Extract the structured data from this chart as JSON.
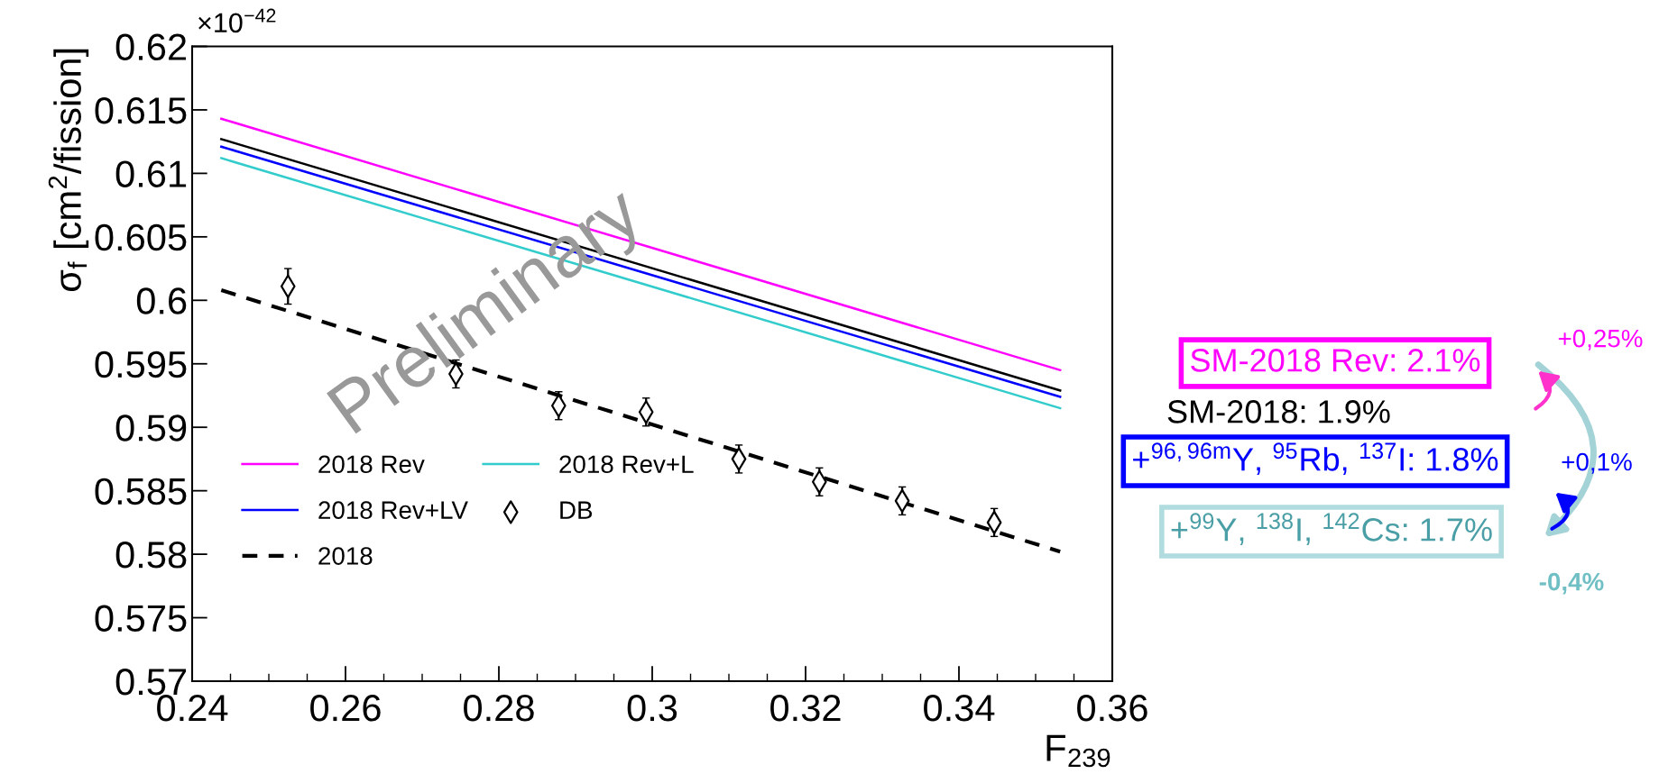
{
  "chart_data": {
    "type": "line",
    "xlabel": "F$_{239}$",
    "ylabel": "σ$_{f}$ [cm$^{2}$/fission]",
    "xlim": [
      0.24,
      0.36
    ],
    "xticks": [
      0.24,
      0.26,
      0.28,
      0.3,
      0.32,
      0.34,
      0.36
    ],
    "ylim": [
      0.57,
      0.62
    ],
    "yticks": [
      0.57,
      0.575,
      0.58,
      0.585,
      0.59,
      0.595,
      0.6,
      0.605,
      0.61,
      0.615,
      0.62
    ],
    "grid": false,
    "legend": "bottom left",
    "series": [
      {
        "name": "2018 Rev",
        "color": "#ff00ff",
        "x": [
          0.2438,
          0.3532
        ],
        "values": [
          0.6143,
          0.5945
        ]
      },
      {
        "name": "2018 Rev+LV",
        "color": "#0000ff",
        "x": [
          0.2438,
          0.3532
        ],
        "values": [
          0.6121,
          0.5924
        ]
      },
      {
        "name": "2018",
        "color": "#000000",
        "line_style": "dashed",
        "x": [
          0.2438,
          0.3532
        ],
        "values": [
          0.6008,
          0.5802
        ]
      },
      {
        "name": "2018 Rev+L",
        "color": "#33cccc",
        "x": [
          0.2438,
          0.3532
        ],
        "values": [
          0.6112,
          0.5915
        ]
      },
      {
        "name": "DB",
        "type": "scatter",
        "color": "#000000",
        "marker": "diamond",
        "x": [
          0.2525,
          0.2744,
          0.2878,
          0.2992,
          0.3113,
          0.3218,
          0.3326,
          0.3446
        ],
        "values": [
          0.6011,
          0.5942,
          0.5917,
          0.5912,
          0.5875,
          0.5857,
          0.5842,
          0.5825
        ],
        "errors": [
          0.0014,
          0.0011,
          0.0011,
          0.0011,
          0.0011,
          0.0011,
          0.0011,
          0.0011
        ]
      },
      {
        "color": "#000000",
        "x": [
          0.2438,
          0.3532
        ],
        "values": [
          0.6127,
          0.5929
        ]
      }
    ],
    "annotations": [
      "×10$^{−42}$",
      "Preliminary",
      "SM-2018 Rev: 2.1%",
      "SM-2018: 1.9%",
      "+$^{96,96m}$Y, $^{95}$Rb, $^{137}$I: 1.8%",
      "+$^{99}$Y, $^{138}$I, $^{142}$Cs: 1.7%",
      "+0,25%",
      "+0,1%",
      "-0,4%"
    ]
  }
}
